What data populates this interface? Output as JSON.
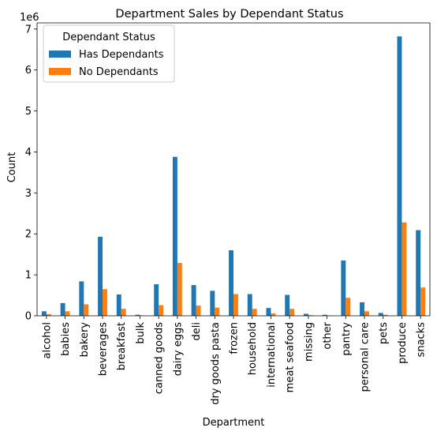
{
  "chart_data": {
    "type": "bar",
    "title": "Department Sales by Dependant Status",
    "xlabel": "Department",
    "ylabel": "Count",
    "y_offset_text": "1e6",
    "y_scale": 1000000,
    "ylim": [
      0,
      7.15
    ],
    "yticks": [
      0,
      1,
      2,
      3,
      4,
      5,
      6,
      7
    ],
    "grid": false,
    "legend": {
      "title": "Dependant Status",
      "placement": "top-left"
    },
    "categories": [
      "alcohol",
      "babies",
      "bakery",
      "beverages",
      "breakfast",
      "bulk",
      "canned goods",
      "dairy eggs",
      "deli",
      "dry goods pasta",
      "frozen",
      "household",
      "international",
      "meat seafood",
      "missing",
      "other",
      "pantry",
      "personal care",
      "pets",
      "produce",
      "snacks"
    ],
    "series": [
      {
        "name": "Has Dependants",
        "color": "#1f77b4",
        "values": [
          0.11,
          0.31,
          0.84,
          1.93,
          0.52,
          0.025,
          0.77,
          3.88,
          0.75,
          0.61,
          1.6,
          0.53,
          0.19,
          0.51,
          0.048,
          0.025,
          1.35,
          0.33,
          0.07,
          6.82,
          2.09
        ]
      },
      {
        "name": "No Dependants",
        "color": "#ff7f0e",
        "values": [
          0.04,
          0.11,
          0.28,
          0.65,
          0.17,
          0.008,
          0.26,
          1.29,
          0.25,
          0.2,
          0.53,
          0.17,
          0.06,
          0.17,
          0.016,
          0.008,
          0.44,
          0.11,
          0.025,
          2.28,
          0.69
        ]
      }
    ]
  }
}
